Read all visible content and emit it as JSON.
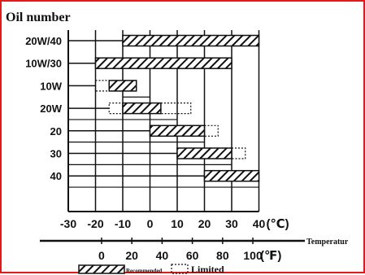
{
  "chart_data": {
    "type": "bar",
    "title": "Oil number",
    "xlabel": "Temperatur",
    "categories": [
      "20W/40",
      "10W/30",
      "10W",
      "20W",
      "20",
      "30",
      "40"
    ],
    "units": {
      "celsius": "(℃)",
      "fahrenheit": "(℉)"
    },
    "celsius_ticks": [
      "-30",
      "-20",
      "-10",
      "0",
      "10",
      "20",
      "30",
      "40"
    ],
    "fahrenheit_ticks": [
      "0",
      "20",
      "40",
      "60",
      "80",
      "100"
    ],
    "xlim": [
      -30,
      40
    ],
    "series": [
      {
        "name": "Recommended",
        "values": [
          [
            -10,
            40
          ],
          [
            -20,
            30
          ],
          [
            -15,
            -5
          ],
          [
            -10,
            4
          ],
          [
            0,
            20
          ],
          [
            10,
            30
          ],
          [
            20,
            40
          ]
        ]
      },
      {
        "name": "Limited",
        "values": [
          null,
          null,
          [
            -20,
            -15
          ],
          [
            -15,
            -10
          ],
          null,
          null,
          null
        ]
      },
      {
        "name": "Limited",
        "values": [
          null,
          null,
          null,
          [
            4,
            15
          ],
          [
            20,
            25
          ],
          [
            30,
            35
          ],
          null
        ]
      }
    ],
    "legend": [
      "Recommended",
      "Limited"
    ]
  }
}
